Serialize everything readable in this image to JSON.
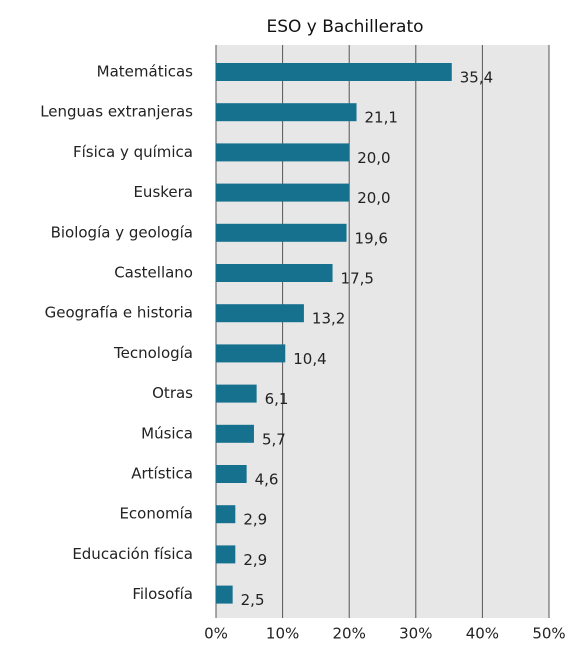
{
  "chart_data": {
    "type": "bar",
    "orientation": "horizontal",
    "title": "ESO y Bachillerato",
    "categories": [
      "Matemáticas",
      "Lenguas extranjeras",
      "Física y química",
      "Euskera",
      "Biología y geología",
      "Castellano",
      "Geografía e historia",
      "Tecnología",
      "Otras",
      "Música",
      "Artística",
      "Economía",
      "Educación física",
      "Filosofía"
    ],
    "values": [
      35.4,
      21.1,
      20.0,
      20.0,
      19.6,
      17.5,
      13.2,
      10.4,
      6.1,
      5.7,
      4.6,
      2.9,
      2.9,
      2.5
    ],
    "value_labels": [
      "35,4",
      "21,1",
      "20,0",
      "20,0",
      "19,6",
      "17,5",
      "13,2",
      "10,4",
      "6,1",
      "5,7",
      "4,6",
      "2,9",
      "2,9",
      "2,5"
    ],
    "color": "#16718f",
    "xlim": [
      0,
      50
    ],
    "xticks": [
      {
        "value": 0,
        "label": "0%"
      },
      {
        "value": 10,
        "label": "10%"
      },
      {
        "value": 20,
        "label": "20%"
      },
      {
        "value": 30,
        "label": "30%"
      },
      {
        "value": 40,
        "label": "40%"
      },
      {
        "value": 50,
        "label": "50%"
      }
    ],
    "grid": true
  }
}
